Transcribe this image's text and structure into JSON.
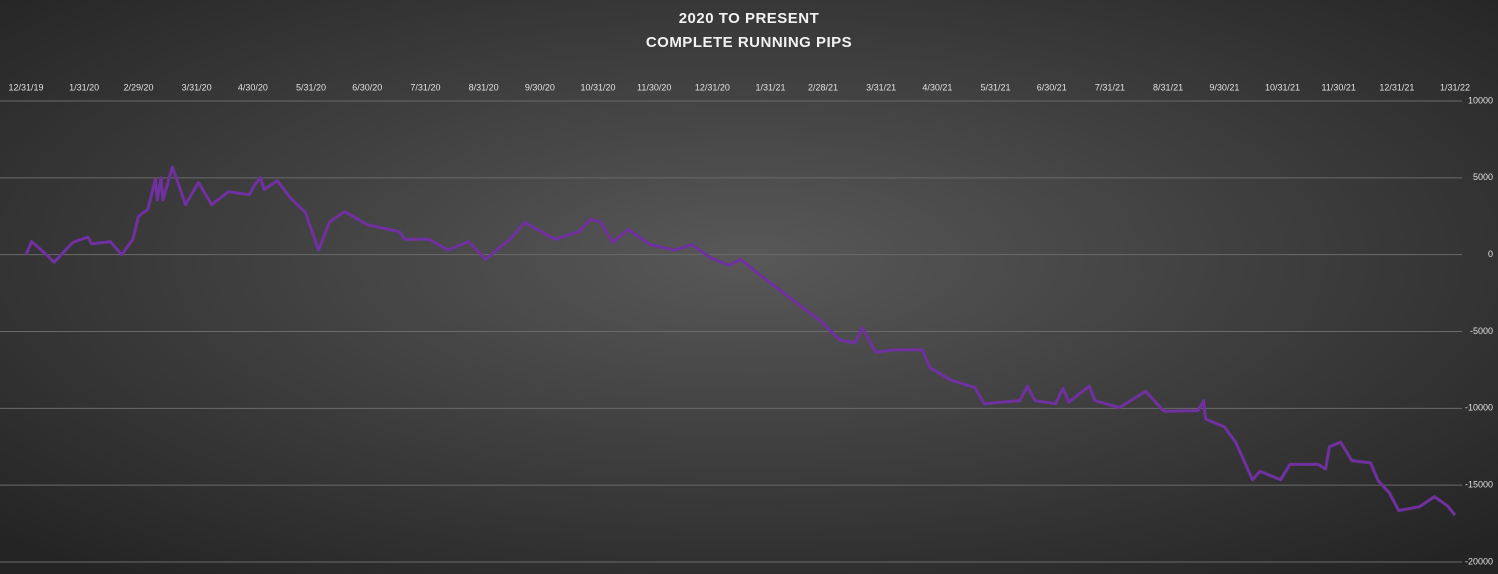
{
  "chart_data": {
    "type": "line",
    "title": "2020 TO PRESENT",
    "subtitle": "COMPLETE RUNNING PIPS",
    "x": [
      "12/31/19",
      "1/3/20",
      "1/10/20",
      "1/15/20",
      "1/25/20",
      "2/2/20",
      "2/4/20",
      "2/14/20",
      "2/20/20",
      "2/26/20",
      "2/29/20",
      "3/5/20",
      "3/9/20",
      "3/10/20",
      "3/12/20",
      "3/13/20",
      "3/18/20",
      "3/22/20",
      "3/25/20",
      "4/1/20",
      "4/8/20",
      "4/17/20",
      "4/28/20",
      "5/1/20",
      "5/4/20",
      "5/6/20",
      "5/13/20",
      "5/20/20",
      "5/28/20",
      "6/4/20",
      "6/10/20",
      "6/18/20",
      "6/30/20",
      "7/17/20",
      "7/20/20",
      "8/2/20",
      "8/12/20",
      "8/23/20",
      "9/1/20",
      "9/14/20",
      "9/22/20",
      "10/8/20",
      "10/21/20",
      "10/27/20",
      "11/1/20",
      "11/8/20",
      "11/16/20",
      "11/28/20",
      "12/11/20",
      "12/20/20",
      "12/30/20",
      "1/9/21",
      "1/15/21",
      "1/25/21",
      "2/5/21",
      "2/15/21",
      "2/26/21",
      "3/9/21",
      "3/17/21",
      "3/21/21",
      "3/28/21",
      "4/7/21",
      "4/22/21",
      "4/26/21",
      "5/7/21",
      "5/20/21",
      "5/25/21",
      "6/13/21",
      "6/17/21",
      "6/21/21",
      "7/2/21",
      "7/6/21",
      "7/9/21",
      "7/20/21",
      "7/23/21",
      "8/5/21",
      "8/19/21",
      "8/29/21",
      "9/16/21",
      "9/19/21",
      "9/20/21",
      "9/30/21",
      "10/6/21",
      "10/15/21",
      "10/19/21",
      "10/30/21",
      "11/4/21",
      "11/19/21",
      "11/23/21",
      "11/25/21",
      "12/1/21",
      "12/7/21",
      "12/17/21",
      "12/21/21",
      "12/27/21",
      "1/1/22",
      "1/12/22",
      "1/20/22",
      "1/27/22",
      "1/31/22"
    ],
    "series": [
      {
        "color": "#7030a0",
        "values": [
          0,
          850,
          100,
          -500,
          800,
          1150,
          700,
          850,
          0,
          1000,
          2500,
          2950,
          4900,
          3550,
          5000,
          3550,
          5700,
          4350,
          3250,
          4700,
          3250,
          4100,
          3900,
          4550,
          5000,
          4250,
          4800,
          3700,
          2750,
          300,
          2150,
          2800,
          1950,
          1500,
          1000,
          1000,
          300,
          850,
          -300,
          1000,
          2100,
          1000,
          1500,
          2300,
          2150,
          800,
          1650,
          650,
          300,
          650,
          -200,
          -700,
          -300,
          -1300,
          -2300,
          -3250,
          -4250,
          -5550,
          -5750,
          -4750,
          -6350,
          -6200,
          -6200,
          -7350,
          -8150,
          -8650,
          -9700,
          -9500,
          -8550,
          -9500,
          -9700,
          -8700,
          -9600,
          -8550,
          -9500,
          -9950,
          -8900,
          -10200,
          -10150,
          -9500,
          -10700,
          -11200,
          -12200,
          -14650,
          -14100,
          -14650,
          -13650,
          -13650,
          -13950,
          -12500,
          -12200,
          -13400,
          -13550,
          -14700,
          -15500,
          -16650,
          -16400,
          -15750,
          -16350,
          -16950
        ]
      }
    ],
    "xlim": [
      "12/31/19",
      "1/31/22"
    ],
    "xticks": [
      "12/31/19",
      "1/31/20",
      "2/29/20",
      "3/31/20",
      "4/30/20",
      "5/31/20",
      "6/30/20",
      "7/31/20",
      "8/31/20",
      "9/30/20",
      "10/31/20",
      "11/30/20",
      "12/31/20",
      "1/31/21",
      "2/28/21",
      "3/31/21",
      "4/30/21",
      "5/31/21",
      "6/30/21",
      "7/31/21",
      "8/31/21",
      "9/30/21",
      "10/31/21",
      "11/30/21",
      "12/31/21",
      "1/31/22"
    ],
    "ylim": [
      -20000,
      10000
    ],
    "yticks": [
      10000,
      5000,
      0,
      -5000,
      -10000,
      -15000,
      -20000
    ],
    "grid": true
  }
}
